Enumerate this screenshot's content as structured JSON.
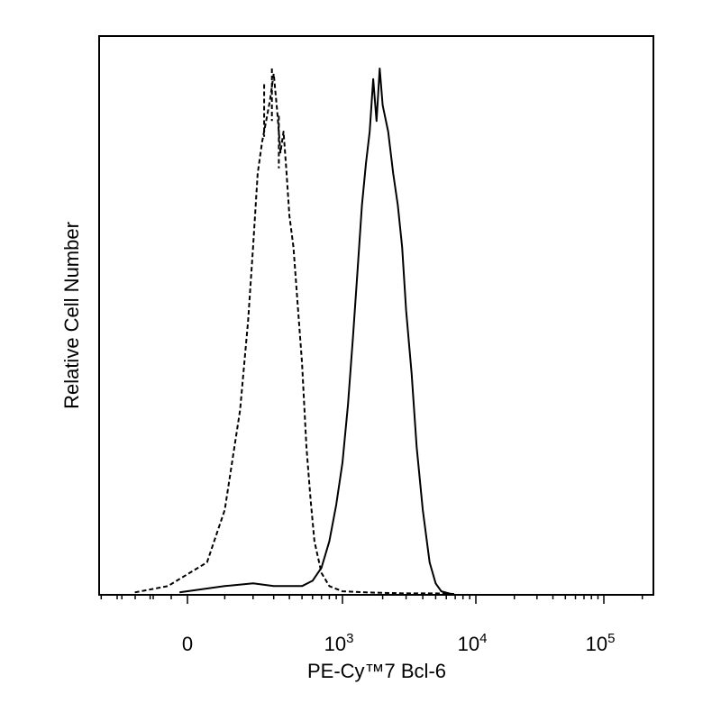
{
  "chart_data": {
    "type": "line",
    "chart_kind": "flow cytometry histogram",
    "xlabel": "PE-Cy™7 Bcl-6",
    "ylabel": "Relative Cell Number",
    "x_scale": "biexponential",
    "x_ticks": [
      {
        "value": 0,
        "base": "0",
        "exp": ""
      },
      {
        "value": 1000,
        "base": "10",
        "exp": "3"
      },
      {
        "value": 10000,
        "base": "10",
        "exp": "4"
      },
      {
        "value": 100000,
        "base": "10",
        "exp": "5"
      }
    ],
    "xlim": [
      -400,
      262144
    ],
    "ylim": [
      0,
      100
    ],
    "grid": false,
    "legend": "none",
    "series": [
      {
        "style": "dashed",
        "color": "#000000",
        "x": [
          -150,
          -50,
          50,
          100,
          150,
          180,
          200,
          220,
          240,
          260,
          280,
          300,
          320,
          340,
          360,
          380,
          400,
          430,
          460,
          500,
          540,
          580,
          620,
          700,
          800,
          1000,
          1500,
          2000,
          3000,
          5000,
          7000
        ],
        "y": [
          0.3,
          1.5,
          6,
          16,
          35,
          52,
          66,
          80,
          86,
          90,
          94,
          99,
          92,
          84,
          88,
          80,
          72,
          66,
          56,
          44,
          28,
          18,
          10,
          4,
          1.5,
          0.5,
          0.3,
          0.2,
          0.1,
          0.1,
          0
        ],
        "peak_extra_spikes": [
          [
            250,
            97
          ],
          [
            290,
            100
          ],
          [
            330,
            91
          ]
        ]
      },
      {
        "style": "solid",
        "color": "#000000",
        "x": [
          -20,
          100,
          200,
          300,
          400,
          500,
          600,
          700,
          800,
          900,
          1000,
          1100,
          1200,
          1300,
          1400,
          1500,
          1600,
          1700,
          1800,
          1900,
          2000,
          2200,
          2400,
          2600,
          2800,
          3000,
          3300,
          3600,
          4000,
          4500,
          5000,
          5500,
          6500
        ],
        "y": [
          0.3,
          1.5,
          2,
          1.5,
          1.5,
          1.5,
          2.5,
          5,
          10,
          17,
          25,
          36,
          49,
          62,
          74,
          82,
          88,
          98,
          90,
          100,
          93,
          88,
          80,
          74,
          66,
          54,
          42,
          28,
          16,
          6,
          2,
          0.5,
          0
        ]
      }
    ]
  }
}
